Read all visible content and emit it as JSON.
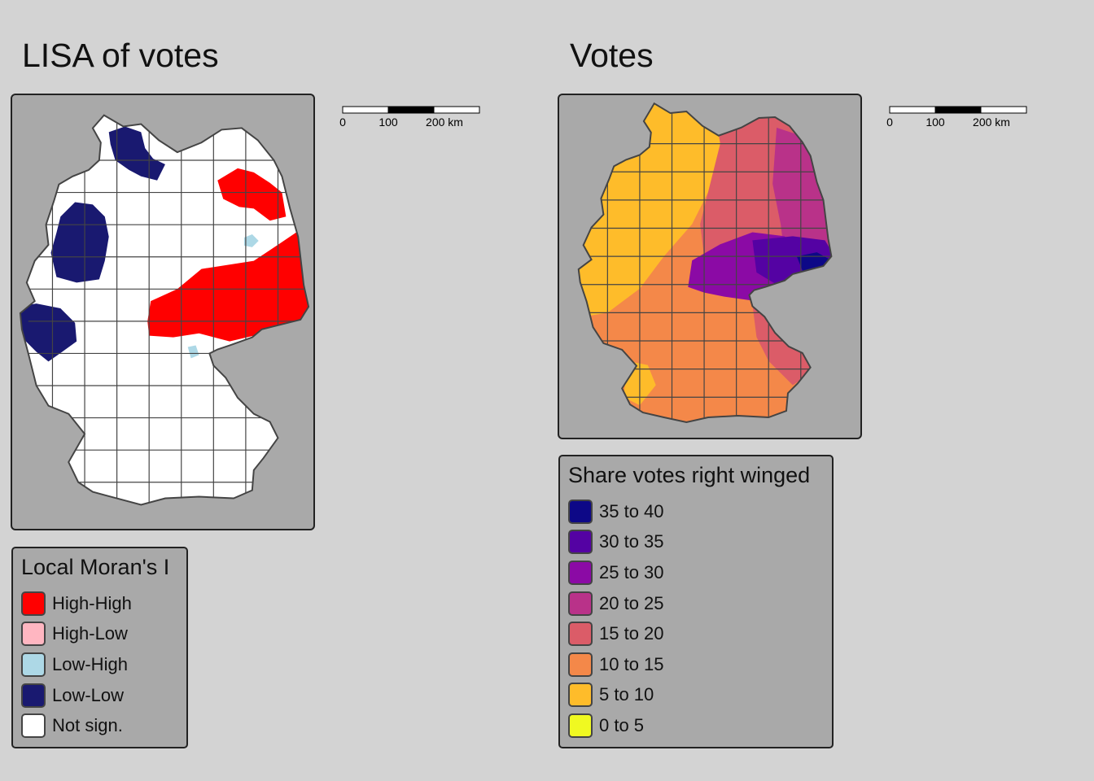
{
  "panels": [
    {
      "title": "LISA of votes"
    },
    {
      "title": "Votes"
    }
  ],
  "scale_bar": {
    "ticks": [
      "0",
      "100",
      "200 km"
    ],
    "tick_values_km": [
      0,
      100,
      200
    ]
  },
  "lisa_legend": {
    "title": "Local Moran's I",
    "items": [
      {
        "label": "High-High",
        "color": "#ff0000"
      },
      {
        "label": "High-Low",
        "color": "#ffb6c1"
      },
      {
        "label": "Low-High",
        "color": "#add8e6"
      },
      {
        "label": "Low-Low",
        "color": "#191970"
      },
      {
        "label": "Not sign.",
        "color": "#ffffff"
      }
    ]
  },
  "votes_legend": {
    "title": "Share votes right winged",
    "items": [
      {
        "label": "35 to 40",
        "color": "#0d0887"
      },
      {
        "label": "30 to 35",
        "color": "#5402a3"
      },
      {
        "label": "25 to 30",
        "color": "#8b0aa5"
      },
      {
        "label": "20 to 25",
        "color": "#b93289"
      },
      {
        "label": "15 to 20",
        "color": "#db5c68"
      },
      {
        "label": "10 to 15",
        "color": "#f48849"
      },
      {
        "label": "5 to 10",
        "color": "#febc2a"
      },
      {
        "label": "0 to 5",
        "color": "#f0f921"
      }
    ]
  },
  "map_style": {
    "map_background": "#a9a9a9",
    "page_background": "#d3d3d3",
    "border_color": "#444444"
  }
}
